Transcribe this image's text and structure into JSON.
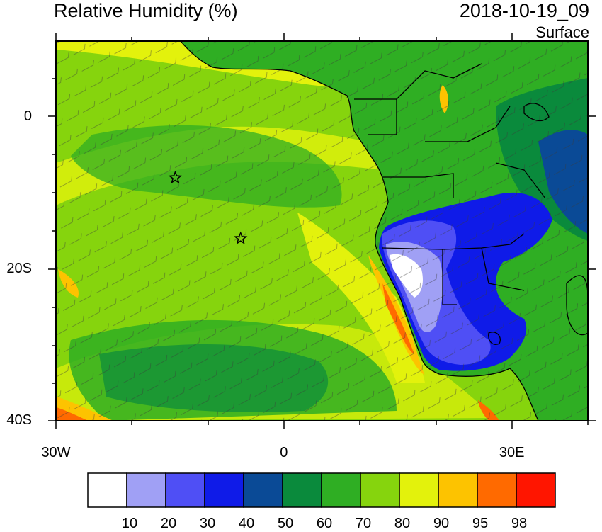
{
  "map": {
    "title": "Relative Humidity (%)",
    "datetime": "2018-10-19_09",
    "level": "Surface",
    "extent": {
      "lon": [
        -30,
        40
      ],
      "lat": [
        -40,
        10
      ]
    },
    "lat_ticks": [
      {
        "value": 0,
        "label": "0"
      },
      {
        "value": -20,
        "label": "20S"
      },
      {
        "value": -40,
        "label": "40S"
      }
    ],
    "lon_ticks": [
      {
        "value": -30,
        "label": "30W"
      },
      {
        "value": 0,
        "label": "0"
      },
      {
        "value": 30,
        "label": "30E"
      }
    ],
    "markers": [
      {
        "name": "star-1",
        "lon": -14.3,
        "lat": -8.0
      },
      {
        "name": "star-2",
        "lon": -5.7,
        "lat": -16.0
      }
    ]
  },
  "colorbar": {
    "colors": [
      "#ffffff",
      "#a0a0f5",
      "#4f4ff5",
      "#0f1be8",
      "#0a4a96",
      "#0a8a3c",
      "#2fae23",
      "#86d40d",
      "#e3f20c",
      "#fdc300",
      "#ff6a00",
      "#ff1500"
    ],
    "labels": [
      "10",
      "20",
      "30",
      "40",
      "50",
      "60",
      "70",
      "80",
      "90",
      "95",
      "98"
    ]
  }
}
